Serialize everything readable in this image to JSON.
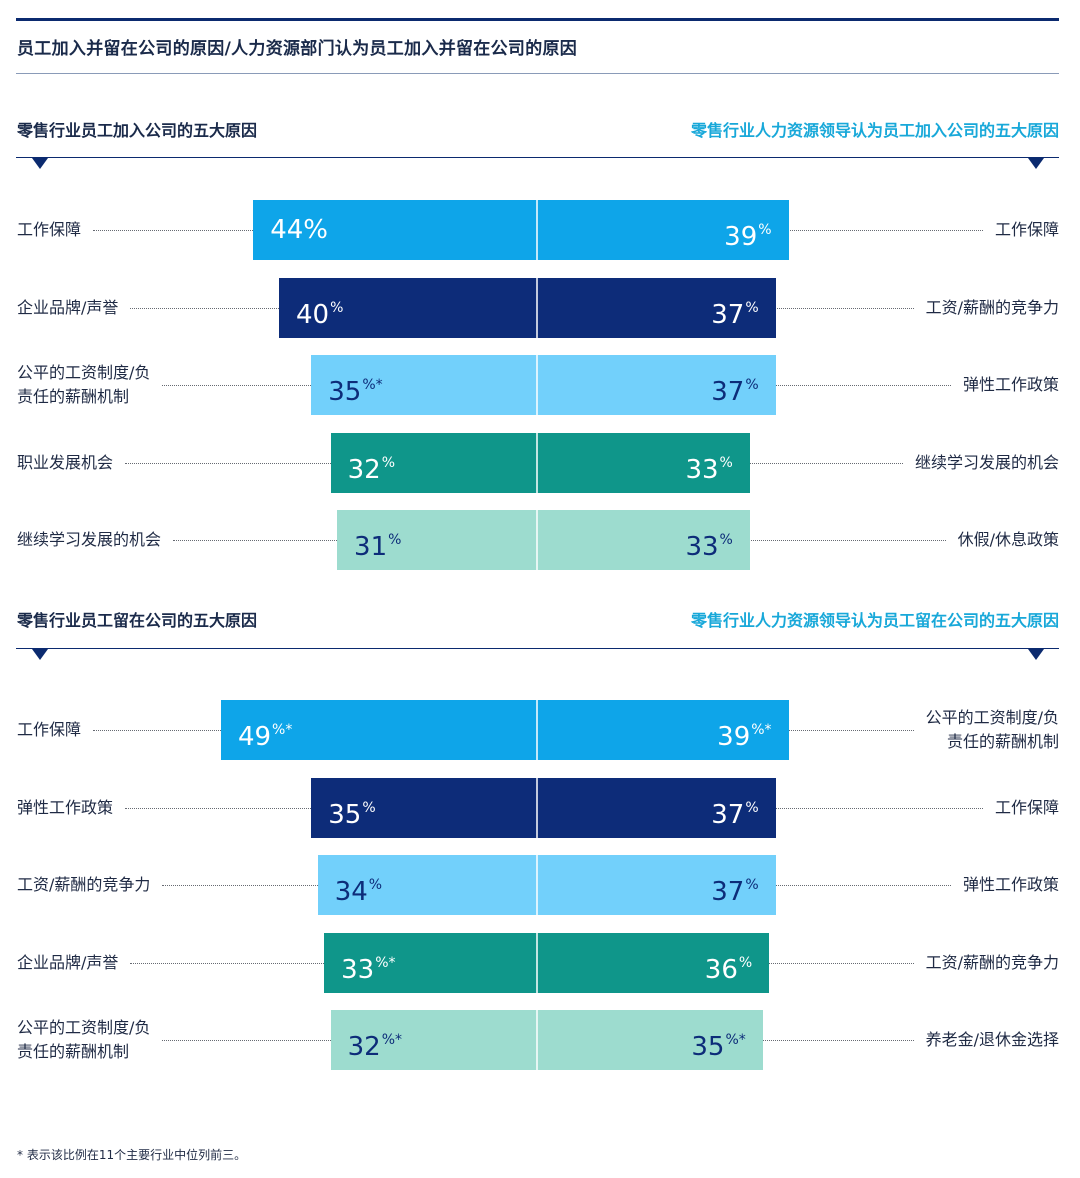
{
  "title": "员工加入并留在公司的原因/人力资源部门认为员工加入并留在公司的原因",
  "footnote": "* 表示该比例在11个主要行业中位列前三。",
  "colors": {
    "brand_navy": "#0b2a6f",
    "accent_cyan": "#18a8d9",
    "blue": "#0ea5e9",
    "navy": "#0d2c79",
    "light_blue": "#72d0fb",
    "teal": "#0f968a",
    "light_teal": "#9ddccf"
  },
  "chart_data": [
    {
      "type": "bar",
      "orientation": "diverging-horizontal",
      "title_left": "零售行业员工加入公司的五大原因",
      "title_right": "零售行业人力资源领导认为员工加入公司的五大原因",
      "unit": "%",
      "rows": [
        {
          "color": "blue",
          "left_label": "工作保障",
          "left_value": 44,
          "left_star": false,
          "left_sup": false,
          "right_label": "工作保障",
          "right_value": 39,
          "right_star": false
        },
        {
          "color": "navy",
          "left_label": "企业品牌/声誉",
          "left_value": 40,
          "left_star": false,
          "left_sup": true,
          "right_label": "工资/薪酬的竞争力",
          "right_value": 37,
          "right_star": false
        },
        {
          "color": "light_blue",
          "left_label": "公平的工资制度/负\n责任的薪酬机制",
          "left_value": 35,
          "left_star": true,
          "left_sup": true,
          "right_label": "弹性工作政策",
          "right_value": 37,
          "right_star": false
        },
        {
          "color": "teal",
          "left_label": "职业发展机会",
          "left_value": 32,
          "left_star": false,
          "left_sup": true,
          "right_label": "继续学习发展的机会",
          "right_value": 33,
          "right_star": false
        },
        {
          "color": "light_teal",
          "left_label": "继续学习发展的机会",
          "left_value": 31,
          "left_star": false,
          "left_sup": true,
          "right_label": "休假/休息政策",
          "right_value": 33,
          "right_star": false
        }
      ]
    },
    {
      "type": "bar",
      "orientation": "diverging-horizontal",
      "title_left": "零售行业员工留在公司的五大原因",
      "title_right": "零售行业人力资源领导认为员工留在公司的五大原因",
      "unit": "%",
      "rows": [
        {
          "color": "blue",
          "left_label": "工作保障",
          "left_value": 49,
          "left_star": true,
          "left_sup": true,
          "right_label": "公平的工资制度/负\n责任的薪酬机制",
          "right_value": 39,
          "right_star": true
        },
        {
          "color": "navy",
          "left_label": "弹性工作政策",
          "left_value": 35,
          "left_star": false,
          "left_sup": true,
          "right_label": "工作保障",
          "right_value": 37,
          "right_star": false
        },
        {
          "color": "light_blue",
          "left_label": "工资/薪酬的竞争力",
          "left_value": 34,
          "left_star": false,
          "left_sup": true,
          "right_label": "弹性工作政策",
          "right_value": 37,
          "right_star": false
        },
        {
          "color": "teal",
          "left_label": "企业品牌/声誉",
          "left_value": 33,
          "left_star": true,
          "left_sup": true,
          "right_label": "工资/薪酬的竞争力",
          "right_value": 36,
          "right_star": false
        },
        {
          "color": "light_teal",
          "left_label": "公平的工资制度/负\n责任的薪酬机制",
          "left_value": 32,
          "left_star": true,
          "left_sup": true,
          "right_label": "养老金/退休金选择",
          "right_value": 35,
          "right_star": true
        }
      ]
    }
  ]
}
